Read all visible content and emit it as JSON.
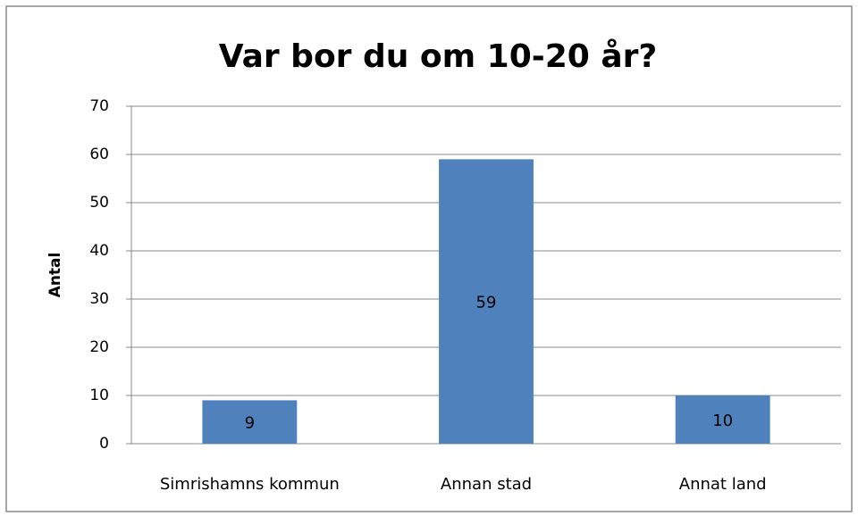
{
  "chart_data": {
    "type": "bar",
    "title": "Var bor du om 10-20 år?",
    "y_label": "Antal",
    "categories": [
      "Simrishamns kommun",
      "Annan stad",
      "Annat land"
    ],
    "values": [
      9,
      59,
      10
    ],
    "color": "#4f81bd",
    "ylim": [
      0,
      70
    ],
    "yticks": [
      0,
      10,
      20,
      30,
      40,
      50,
      60,
      70
    ],
    "grid": true,
    "data_labels": true
  }
}
